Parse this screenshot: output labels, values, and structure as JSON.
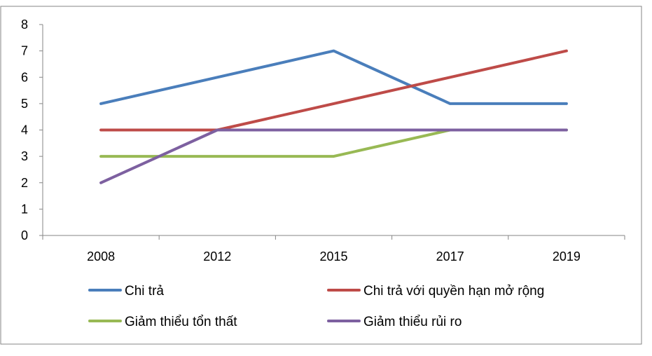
{
  "chart_data": {
    "type": "line",
    "categories": [
      "2008",
      "2012",
      "2015",
      "2017",
      "2019"
    ],
    "series": [
      {
        "name": "Chi trả",
        "values": [
          5,
          6,
          7,
          5,
          5
        ],
        "color": "#4a7ebb"
      },
      {
        "name": "Chi trả với quyền hạn mở rộng",
        "values": [
          4,
          4,
          5,
          6,
          7
        ],
        "color": "#be4b48"
      },
      {
        "name": "Giảm thiểu tổn thất",
        "values": [
          3,
          3,
          3,
          4,
          4
        ],
        "color": "#98b954"
      },
      {
        "name": "Giảm thiểu rủi ro",
        "values": [
          2,
          4,
          4,
          4,
          4
        ],
        "color": "#7d60a0"
      }
    ],
    "yticks": [
      "0",
      "1",
      "2",
      "3",
      "4",
      "5",
      "6",
      "7",
      "8"
    ],
    "ylim": [
      0,
      8
    ],
    "grid": false,
    "legend_position": "bottom",
    "axis_color": "#868686",
    "border_color": "#868686"
  }
}
